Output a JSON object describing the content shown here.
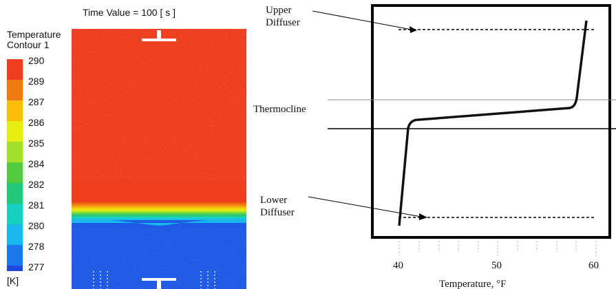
{
  "simulation": {
    "time_label": "Time Value = 100 [ s ]",
    "legend_title_line1": "Temperature",
    "legend_title_line2": "Contour 1",
    "unit": "[K]",
    "scale": [
      {
        "label": "290",
        "color": "#ee3c1c"
      },
      {
        "label": "289",
        "color": "#f07a12"
      },
      {
        "label": "287",
        "color": "#f8be0a"
      },
      {
        "label": "286",
        "color": "#e4ee10"
      },
      {
        "label": "285",
        "color": "#a4e02c"
      },
      {
        "label": "284",
        "color": "#52cc3e"
      },
      {
        "label": "282",
        "color": "#22c878"
      },
      {
        "label": "281",
        "color": "#18d2c0"
      },
      {
        "label": "280",
        "color": "#18b8ee"
      },
      {
        "label": "278",
        "color": "#1a78ec"
      },
      {
        "label": "277",
        "color": "#1e48e0"
      }
    ],
    "colors": {
      "hot": "#ee3c1c",
      "cold": "#1e5ae6"
    }
  },
  "profile_diagram": {
    "upper_diffuser_line1": "Upper",
    "upper_diffuser_line2": "Diffuser",
    "thermocline": "Thermocline",
    "lower_diffuser_line1": "Lower",
    "lower_diffuser_line2": "Diffuser",
    "x_tick_labels": [
      "40",
      "50",
      "60"
    ],
    "x_axis_label": "Temperature, °F"
  }
}
